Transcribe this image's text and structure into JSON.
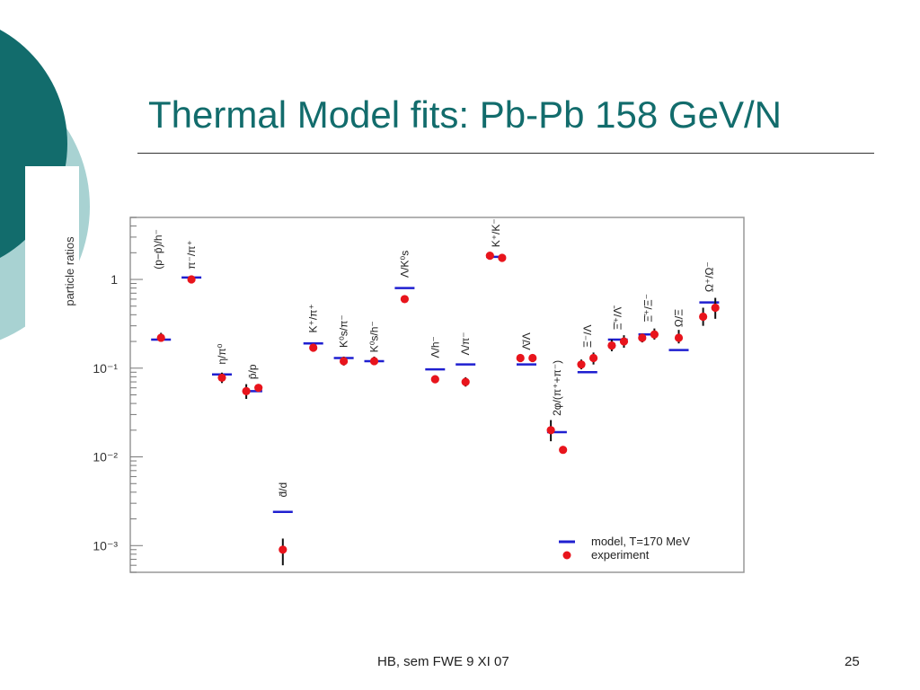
{
  "slide": {
    "title": "Thermal Model fits: Pb-Pb 158 GeV/N",
    "footer_center": "HB, sem FWE 9 XI 07",
    "page_number": "25",
    "accent_color": "#126c6c",
    "accent_light": "#a8d2d2"
  },
  "chart_data": {
    "type": "scatter",
    "title": "",
    "ylabel": "particle ratios",
    "yscale": "log",
    "ylim": [
      0.0005,
      5
    ],
    "ytick_labels": [
      {
        "value": 1,
        "label": "1"
      },
      {
        "value": 0.1,
        "label": "10⁻¹"
      },
      {
        "value": 0.01,
        "label": "10⁻²"
      },
      {
        "value": 0.001,
        "label": "10⁻³"
      }
    ],
    "legend": {
      "position": "bottom-right",
      "entries": [
        "model, T=170 MeV",
        "experiment"
      ],
      "model_color": "#1f1fd0",
      "experiment_color": "#e8141c"
    },
    "labels": [
      {
        "text": "(p−p̄)/h⁻",
        "x": 0.9,
        "y": 1.3
      },
      {
        "text": "π⁻/π⁺",
        "x": 2.0,
        "y": 1.3
      },
      {
        "text": "η/π⁰",
        "x": 3.0,
        "y": 0.11
      },
      {
        "text": "p̄/p",
        "x": 4.0,
        "y": 0.075
      },
      {
        "text": "d̄/d",
        "x": 5.0,
        "y": 0.0035
      },
      {
        "text": "K⁺/π⁺",
        "x": 6.0,
        "y": 0.25
      },
      {
        "text": "K⁰s/π⁻",
        "x": 7.0,
        "y": 0.17
      },
      {
        "text": "K⁰s/h⁻",
        "x": 8.0,
        "y": 0.15
      },
      {
        "text": "Λ/K⁰s",
        "x": 9.0,
        "y": 1.05
      },
      {
        "text": "Λ/h⁻",
        "x": 10.0,
        "y": 0.13
      },
      {
        "text": "Λ/π⁻",
        "x": 11.0,
        "y": 0.14
      },
      {
        "text": "K⁺/K⁻",
        "x": 12.0,
        "y": 2.3
      },
      {
        "text": "Λ̄/Λ",
        "x": 13.0,
        "y": 0.16
      },
      {
        "text": "2φ/(π⁺+π⁻)",
        "x": 14.0,
        "y": 0.029
      },
      {
        "text": "Ξ⁻/Λ",
        "x": 15.0,
        "y": 0.17
      },
      {
        "text": "Ξ̄⁺/Λ̄",
        "x": 16.0,
        "y": 0.27
      },
      {
        "text": "Ξ̄⁺/Ξ⁻",
        "x": 17.0,
        "y": 0.33
      },
      {
        "text": "Ω/Ξ",
        "x": 18.0,
        "y": 0.29
      },
      {
        "text": "Ω⁺/Ω⁻",
        "x": 19.0,
        "y": 0.72
      }
    ],
    "series": [
      {
        "name": "model, T=170 MeV",
        "points": [
          {
            "x": 1.0,
            "y": 0.21
          },
          {
            "x": 2.0,
            "y": 1.05
          },
          {
            "x": 3.0,
            "y": 0.085
          },
          {
            "x": 4.0,
            "y": 0.055
          },
          {
            "x": 5.0,
            "y": 0.0024
          },
          {
            "x": 6.0,
            "y": 0.19
          },
          {
            "x": 7.0,
            "y": 0.13
          },
          {
            "x": 8.0,
            "y": 0.12
          },
          {
            "x": 9.0,
            "y": 0.8
          },
          {
            "x": 10.0,
            "y": 0.097
          },
          {
            "x": 11.0,
            "y": 0.11
          },
          {
            "x": 12.0,
            "y": 1.8
          },
          {
            "x": 13.0,
            "y": 0.11
          },
          {
            "x": 14.0,
            "y": 0.019
          },
          {
            "x": 15.0,
            "y": 0.09
          },
          {
            "x": 16.0,
            "y": 0.21
          },
          {
            "x": 17.0,
            "y": 0.24
          },
          {
            "x": 18.0,
            "y": 0.16
          },
          {
            "x": 19.0,
            "y": 0.55
          }
        ]
      },
      {
        "name": "experiment",
        "points": [
          {
            "x": 1.0,
            "y": 0.22,
            "err_low": 0.2,
            "err_high": 0.25
          },
          {
            "x": 2.0,
            "y": 1.0
          },
          {
            "x": 3.0,
            "y": 0.078,
            "err_low": 0.068,
            "err_high": 0.089
          },
          {
            "x": 3.8,
            "y": 0.055,
            "err_low": 0.045,
            "err_high": 0.066
          },
          {
            "x": 4.2,
            "y": 0.06
          },
          {
            "x": 5.0,
            "y": 0.0009,
            "err_low": 0.0006,
            "err_high": 0.0012
          },
          {
            "x": 6.0,
            "y": 0.17
          },
          {
            "x": 7.0,
            "y": 0.12,
            "err_low": 0.107,
            "err_high": 0.135
          },
          {
            "x": 8.0,
            "y": 0.12,
            "err_low": 0.108,
            "err_high": 0.135
          },
          {
            "x": 9.0,
            "y": 0.6,
            "err_low": 0.55,
            "err_high": 0.66
          },
          {
            "x": 10.0,
            "y": 0.075,
            "err_low": 0.068,
            "err_high": 0.083
          },
          {
            "x": 11.0,
            "y": 0.07,
            "err_low": 0.062,
            "err_high": 0.079
          },
          {
            "x": 11.8,
            "y": 1.85
          },
          {
            "x": 12.2,
            "y": 1.75
          },
          {
            "x": 12.8,
            "y": 0.13
          },
          {
            "x": 13.2,
            "y": 0.13
          },
          {
            "x": 13.8,
            "y": 0.02,
            "err_low": 0.015,
            "err_high": 0.026
          },
          {
            "x": 14.2,
            "y": 0.012
          },
          {
            "x": 14.8,
            "y": 0.11,
            "err_low": 0.097,
            "err_high": 0.125
          },
          {
            "x": 15.2,
            "y": 0.13,
            "err_low": 0.11,
            "err_high": 0.15
          },
          {
            "x": 15.8,
            "y": 0.18,
            "err_low": 0.155,
            "err_high": 0.21
          },
          {
            "x": 16.2,
            "y": 0.2,
            "err_low": 0.17,
            "err_high": 0.235
          },
          {
            "x": 16.8,
            "y": 0.22,
            "err_low": 0.195,
            "err_high": 0.245
          },
          {
            "x": 17.2,
            "y": 0.24,
            "err_low": 0.21,
            "err_high": 0.28
          },
          {
            "x": 18.0,
            "y": 0.22,
            "err_low": 0.19,
            "err_high": 0.27
          },
          {
            "x": 18.8,
            "y": 0.38,
            "err_low": 0.3,
            "err_high": 0.48
          },
          {
            "x": 19.2,
            "y": 0.48,
            "err_low": 0.36,
            "err_high": 0.62
          }
        ]
      }
    ]
  }
}
